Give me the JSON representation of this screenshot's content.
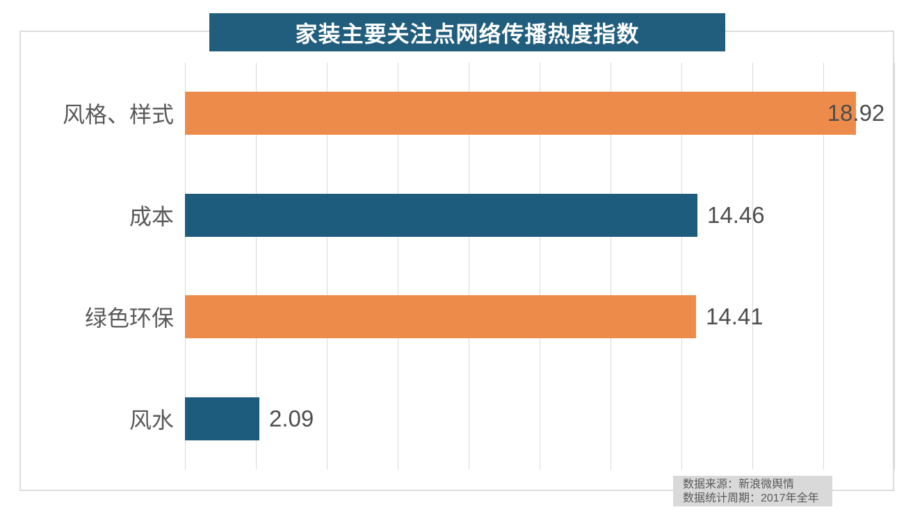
{
  "title": "家装主要关注点网络传播热度指数",
  "source_note": {
    "line1": "数据来源：新浪微舆情",
    "line2": "数据统计周期：2017年全年"
  },
  "colors": {
    "banner_bg": "#215E7E",
    "bar_orange": "#ED8C4A",
    "bar_teal": "#1E5C7E",
    "gridline": "#D9D9D9",
    "chart_border": "#DCDCDC",
    "category_text": "#595959",
    "value_text": "#4D4D4D",
    "note_bg": "#D9D9D9",
    "note_text": "#595959",
    "title_text": "#FFFFFF"
  },
  "chart_data": {
    "type": "bar",
    "orientation": "horizontal",
    "title": "家装主要关注点网络传播热度指数",
    "categories": [
      "风格、样式",
      "成本",
      "绿色环保",
      "风水"
    ],
    "values": [
      18.92,
      14.46,
      14.41,
      2.09
    ],
    "value_labels": [
      "18.92",
      "14.46",
      "14.41",
      "2.09"
    ],
    "bar_colors": [
      "#ED8C4A",
      "#1E5C7E",
      "#ED8C4A",
      "#1E5C7E"
    ],
    "xlim": [
      0,
      20
    ],
    "gridline_step": 2,
    "grid": "vertical-only",
    "tick_labels_shown": false,
    "legend": false,
    "data_labels": true,
    "source_line1": "数据来源：新浪微舆情",
    "source_line2": "数据统计周期：2017年全年"
  }
}
